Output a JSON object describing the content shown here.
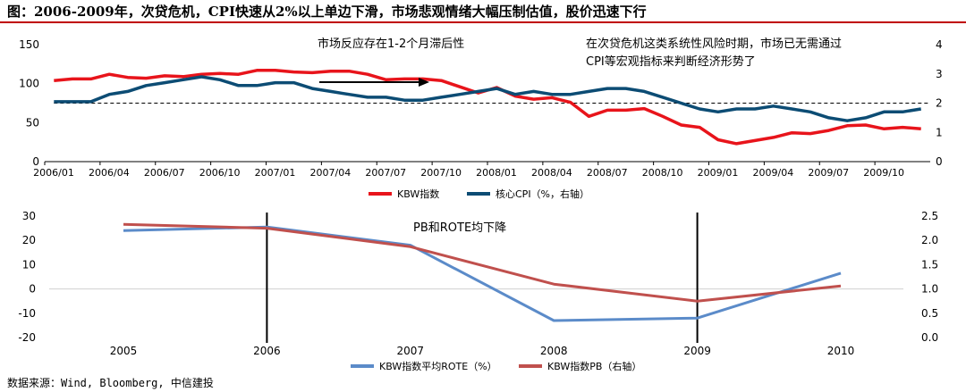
{
  "title": "图：2006-2009年，次贷危机，CPI快速从2%以上单边下滑，市场悲观情绪大幅压制估值，股价迅速下行",
  "source": "数据来源：Wind, Bloomberg, 中信建投",
  "colors": {
    "red": "#e8141b",
    "navy": "#0c4c74",
    "blue": "#5b8bc9",
    "brick": "#c0504d",
    "title_rule": "#c00000"
  },
  "chart_data": [
    {
      "type": "line",
      "title": "",
      "x_ticks": [
        "2006/01",
        "2006/04",
        "2006/07",
        "2006/10",
        "2007/01",
        "2007/04",
        "2007/07",
        "2007/10",
        "2008/01",
        "2008/04",
        "2008/07",
        "2008/10",
        "2009/01",
        "2009/04",
        "2009/07",
        "2009/10"
      ],
      "y_left_ticks": [
        "0",
        "50",
        "100",
        "150"
      ],
      "y_right_ticks": [
        "0",
        "1",
        "2",
        "3",
        "4"
      ],
      "ylim_left": [
        0,
        150
      ],
      "ylim_right": [
        0,
        4
      ],
      "reference_line_right": 2.0,
      "annotations": {
        "lag": "市场反应存在1-2个月滞后性",
        "note_line1": "在次贷危机这类系统性风险时期，市场已无需通过",
        "note_line2": "CPI等宏观指标来判断经济形势了"
      },
      "series": [
        {
          "name": "KBW指数",
          "axis": "left",
          "values": [
            104,
            106,
            106,
            112,
            108,
            107,
            110,
            109,
            112,
            113,
            112,
            117,
            117,
            115,
            114,
            116,
            116,
            112,
            105,
            106,
            106,
            104,
            96,
            88,
            95,
            84,
            80,
            82,
            76,
            58,
            66,
            66,
            68,
            58,
            47,
            44,
            28,
            23,
            27,
            31,
            37,
            36,
            40,
            46,
            47,
            42,
            44,
            42
          ]
        },
        {
          "name": "核心CPI（%，右轴）",
          "axis": "right",
          "values": [
            2.05,
            2.05,
            2.05,
            2.3,
            2.4,
            2.6,
            2.7,
            2.8,
            2.9,
            2.8,
            2.6,
            2.6,
            2.7,
            2.7,
            2.5,
            2.4,
            2.3,
            2.2,
            2.2,
            2.1,
            2.1,
            2.2,
            2.3,
            2.4,
            2.5,
            2.3,
            2.4,
            2.3,
            2.3,
            2.4,
            2.5,
            2.5,
            2.4,
            2.2,
            2.0,
            1.8,
            1.7,
            1.8,
            1.8,
            1.9,
            1.8,
            1.7,
            1.5,
            1.4,
            1.5,
            1.7,
            1.7,
            1.8
          ]
        }
      ]
    },
    {
      "type": "line",
      "title": "PB和ROTE均下降",
      "x": [
        "2005",
        "2006",
        "2007",
        "2008",
        "2009",
        "2010"
      ],
      "y_left_ticks": [
        "-20",
        "-10",
        "0",
        "10",
        "20",
        "30"
      ],
      "y_right_ticks": [
        "0.0",
        "0.5",
        "1.0",
        "1.5",
        "2.0",
        "2.5"
      ],
      "ylim_left": [
        -20,
        30
      ],
      "ylim_right": [
        0,
        2.5
      ],
      "vertical_markers": [
        "2006",
        "2009"
      ],
      "series": [
        {
          "name": "KBW指数平均ROTE（%）",
          "axis": "left",
          "values": [
            24,
            25.5,
            18,
            -13,
            -12,
            6.5
          ]
        },
        {
          "name": "KBW指数PB（右轴）",
          "axis": "right",
          "values": [
            2.33,
            2.25,
            1.87,
            1.1,
            0.75,
            1.06
          ]
        }
      ]
    }
  ]
}
